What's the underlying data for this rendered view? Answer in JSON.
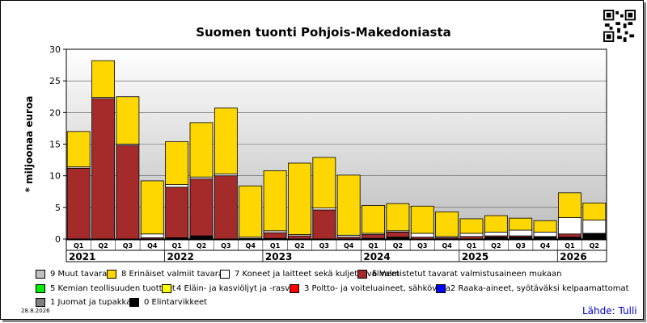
{
  "title": "Suomen tuonti Pohjois-Makedoniasta",
  "ylabel": "* miljoonaa euroa",
  "date": "28.8.2026",
  "source": "Lähde: Tulli",
  "chart_data": {
    "type": "bar",
    "stacked": true,
    "title": "Suomen tuonti Pohjois-Makedoniasta",
    "ylabel": "* miljoonaa euroa",
    "ylim": [
      0,
      30
    ],
    "yticks": [
      0,
      5,
      10,
      15,
      20,
      25,
      30
    ],
    "grid": true,
    "legend_position": "bottom",
    "categories": [
      "Q1",
      "Q2",
      "Q3",
      "Q4",
      "Q1",
      "Q2",
      "Q3",
      "Q4",
      "Q1",
      "Q2",
      "Q3",
      "Q4",
      "Q1",
      "Q2",
      "Q3",
      "Q4",
      "Q1",
      "Q2",
      "Q3",
      "Q4",
      "Q1",
      "Q2"
    ],
    "years": [
      {
        "label": "2021",
        "start": 0,
        "count": 4
      },
      {
        "label": "2022",
        "start": 4,
        "count": 4
      },
      {
        "label": "2023",
        "start": 8,
        "count": 4
      },
      {
        "label": "2024",
        "start": 12,
        "count": 4
      },
      {
        "label": "2025",
        "start": 16,
        "count": 4
      },
      {
        "label": "2026",
        "start": 20,
        "count": 2
      }
    ],
    "series": [
      {
        "name": "0 Elintarvikkeet",
        "color": "#000000",
        "values": [
          0,
          0,
          0,
          0,
          0.2,
          0.5,
          0,
          0,
          0.1,
          0,
          0,
          0,
          0.1,
          0.3,
          0,
          0,
          0,
          0.3,
          0.3,
          0.3,
          0.3,
          0.9
        ]
      },
      {
        "name": "1 Juomat ja tupakka",
        "color": "#808080",
        "values": [
          0,
          0,
          0,
          0,
          0,
          0,
          0,
          0,
          0,
          0,
          0,
          0,
          0,
          0,
          0,
          0,
          0,
          0,
          0,
          0,
          0,
          0
        ]
      },
      {
        "name": "2 Raaka-aineet, syötäväksi kelpaamattomat",
        "color": "#0000ff",
        "values": [
          0,
          0,
          0,
          0,
          0,
          0,
          0,
          0,
          0,
          0,
          0,
          0,
          0,
          0,
          0,
          0,
          0,
          0,
          0,
          0,
          0,
          0
        ]
      },
      {
        "name": "3 Poltto- ja voiteluaineet, sähkövirta",
        "color": "#ff0000",
        "values": [
          0,
          0,
          0,
          0,
          0,
          0,
          0,
          0,
          0,
          0,
          0,
          0,
          0,
          0,
          0,
          0,
          0,
          0,
          0,
          0,
          0,
          0
        ]
      },
      {
        "name": "4 Eläin- ja kasviöljyt ja -rasvat",
        "color": "#ffff00",
        "values": [
          0,
          0,
          0,
          0,
          0,
          0,
          0,
          0,
          0,
          0,
          0,
          0,
          0,
          0,
          0,
          0,
          0,
          0,
          0,
          0,
          0,
          0
        ]
      },
      {
        "name": "5 Kemian teollisuuden tuotteet",
        "color": "#00ee00",
        "values": [
          0,
          0,
          0,
          0,
          0,
          0,
          0,
          0,
          0,
          0,
          0,
          0,
          0,
          0,
          0,
          0,
          0,
          0,
          0,
          0,
          0,
          0
        ]
      },
      {
        "name": "6 Valmistetut tavarat valmistusaineen mukaan",
        "color": "#a52a2a",
        "values": [
          11.2,
          22.2,
          14.8,
          0.2,
          8.0,
          9.0,
          10.0,
          0.1,
          0.9,
          0.5,
          4.6,
          0.3,
          0.6,
          0.8,
          0.3,
          0.2,
          0.4,
          0.2,
          0.2,
          0.1,
          0.5,
          0
        ]
      },
      {
        "name": "7 Koneet ja laitteet sekä kuljetusvälineet",
        "color": "#ffffff",
        "values": [
          0.2,
          0.2,
          0.2,
          0.6,
          0.4,
          0.3,
          0.3,
          0.2,
          0.3,
          0.2,
          0.3,
          0.3,
          0.2,
          0.2,
          0.6,
          0.2,
          0.5,
          0.6,
          0.9,
          0.7,
          2.6,
          2.1
        ]
      },
      {
        "name": "8 Erinäiset valmiit tavarat",
        "color": "#ffd700",
        "values": [
          5.6,
          5.8,
          7.5,
          8.4,
          6.8,
          8.6,
          10.4,
          8.1,
          9.5,
          11.3,
          8.0,
          9.5,
          4.4,
          4.3,
          4.3,
          3.9,
          2.3,
          2.6,
          1.9,
          1.8,
          3.9,
          2.7
        ]
      },
      {
        "name": "9 Muut tavarat",
        "color": "#c0c0c0",
        "values": [
          0,
          0,
          0,
          0,
          0,
          0,
          0,
          0,
          0,
          0,
          0,
          0,
          0,
          0,
          0,
          0,
          0,
          0,
          0,
          0,
          0,
          0
        ]
      }
    ]
  }
}
